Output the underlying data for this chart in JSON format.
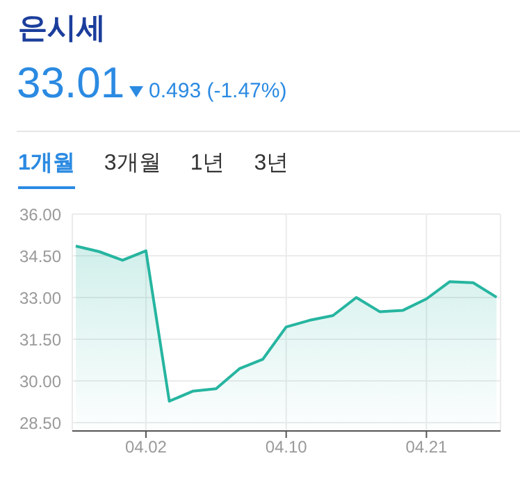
{
  "chart_data": {
    "type": "area",
    "title": "은시세",
    "subtitle": "33.01",
    "annotations": [
      "0.493 (-1.47%)",
      "1개월",
      "3개월",
      "1년",
      "3년"
    ],
    "categories": [
      null,
      null,
      null,
      "04.02",
      null,
      null,
      null,
      null,
      null,
      "04.10",
      null,
      null,
      null,
      null,
      null,
      "04.21",
      null,
      null,
      null
    ],
    "values": [
      34.85,
      34.65,
      34.34,
      34.68,
      29.27,
      29.63,
      29.72,
      30.44,
      30.78,
      31.94,
      32.18,
      32.35,
      33.0,
      32.49,
      32.54,
      32.95,
      33.57,
      33.53,
      33.01
    ],
    "color": "#26b5a0",
    "ylim": [
      28.2,
      36
    ],
    "yticks": [
      {
        "value": 28.5,
        "label": "28.50"
      },
      {
        "value": 30,
        "label": "30.00"
      },
      {
        "value": 31.5,
        "label": "31.50"
      },
      {
        "value": 33,
        "label": "33.00"
      },
      {
        "value": 34.5,
        "label": "34.50"
      },
      {
        "value": 36,
        "label": "36.00"
      }
    ],
    "grid": true
  }
}
